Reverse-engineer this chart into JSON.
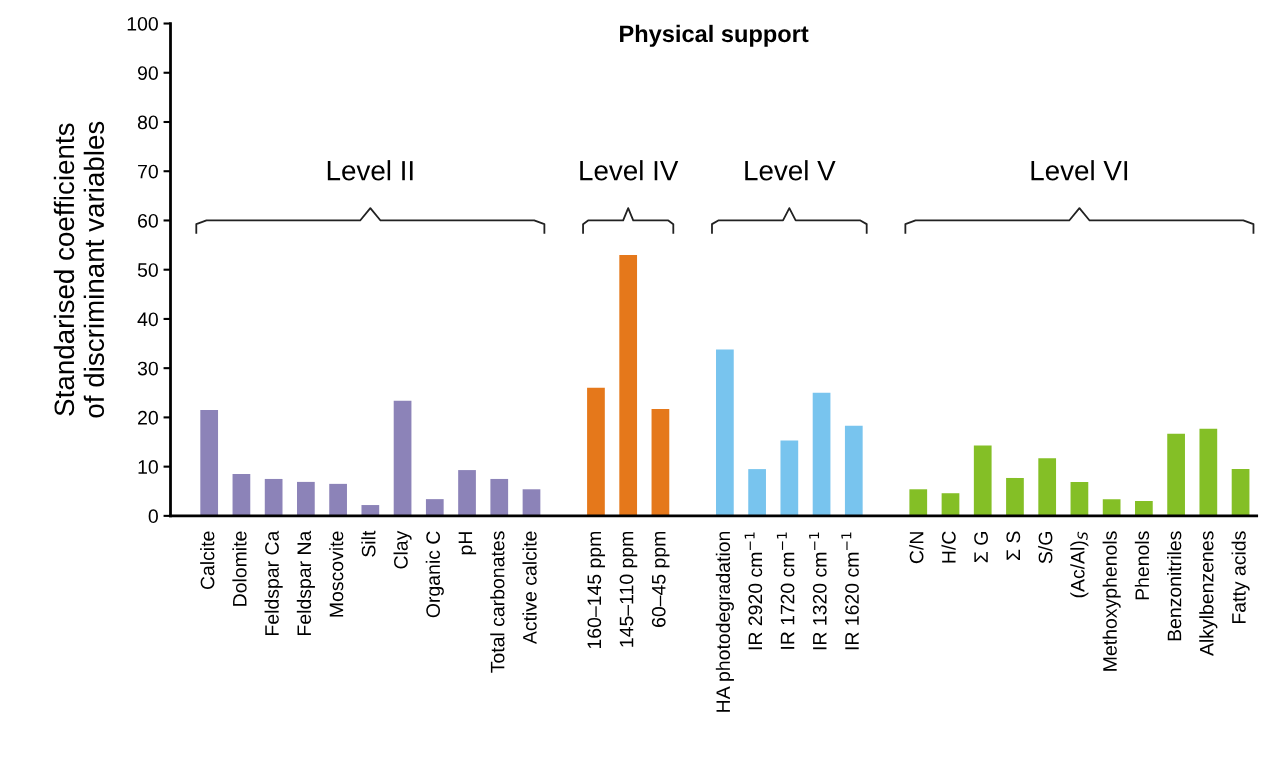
{
  "chart_data": {
    "type": "bar",
    "title": "Physical support",
    "ylabel": "Standarised coefficients\nof discriminant variables",
    "categories": [
      "Calcite",
      "Dolomite",
      "Feldspar Ca",
      "Feldspar Na",
      "Moscovite",
      "Silt",
      "Clay",
      "Organic C",
      "pH",
      "Total carbonates",
      "Active calcite",
      null,
      "160–145 ppm",
      "145–110 ppm",
      "60–45 ppm",
      null,
      "HA photodegradation",
      "IR 2920 cm$^{−1}$",
      "IR 1720 cm$^{−1}$",
      "IR 1320 cm$^{−1}$",
      "IR 1620 cm$^{−1}$",
      null,
      "C/N",
      "H/C",
      "Σ G",
      "Σ S",
      "S/G",
      "(Ac/Al)$_{S}$",
      "Methoxyphenols",
      "Phenols",
      "Benzonitriles",
      "Alkylbenzenes",
      "Fatty acids"
    ],
    "values": [
      21.5,
      8.5,
      7.5,
      6.9,
      6.5,
      2.2,
      23.4,
      3.4,
      9.3,
      7.5,
      5.4,
      null,
      26,
      53,
      21.7,
      null,
      33.8,
      9.5,
      15.3,
      25,
      18.3,
      null,
      5.4,
      4.6,
      14.3,
      7.7,
      11.7,
      6.9,
      3.4,
      3,
      16.7,
      17.7,
      9.5
    ],
    "colors": [
      "#8c83b8",
      "#8c83b8",
      "#8c83b8",
      "#8c83b8",
      "#8c83b8",
      "#8c83b8",
      "#8c83b8",
      "#8c83b8",
      "#8c83b8",
      "#8c83b8",
      "#8c83b8",
      null,
      "#e5781b",
      "#e5781b",
      "#e5781b",
      null,
      "#78c4ee",
      "#78c4ee",
      "#78c4ee",
      "#78c4ee",
      "#78c4ee",
      null,
      "#84bf26",
      "#84bf26",
      "#84bf26",
      "#84bf26",
      "#84bf26",
      "#84bf26",
      "#84bf26",
      "#84bf26",
      "#84bf26",
      "#84bf26",
      "#84bf26"
    ],
    "ylim": [
      0,
      100
    ],
    "yticks": [
      0,
      10,
      20,
      30,
      40,
      50,
      60,
      70,
      80,
      90,
      100
    ],
    "grid": false,
    "legend": false,
    "annotations": [
      "Level II",
      "Level IV",
      "Level V",
      "Level VI"
    ]
  }
}
